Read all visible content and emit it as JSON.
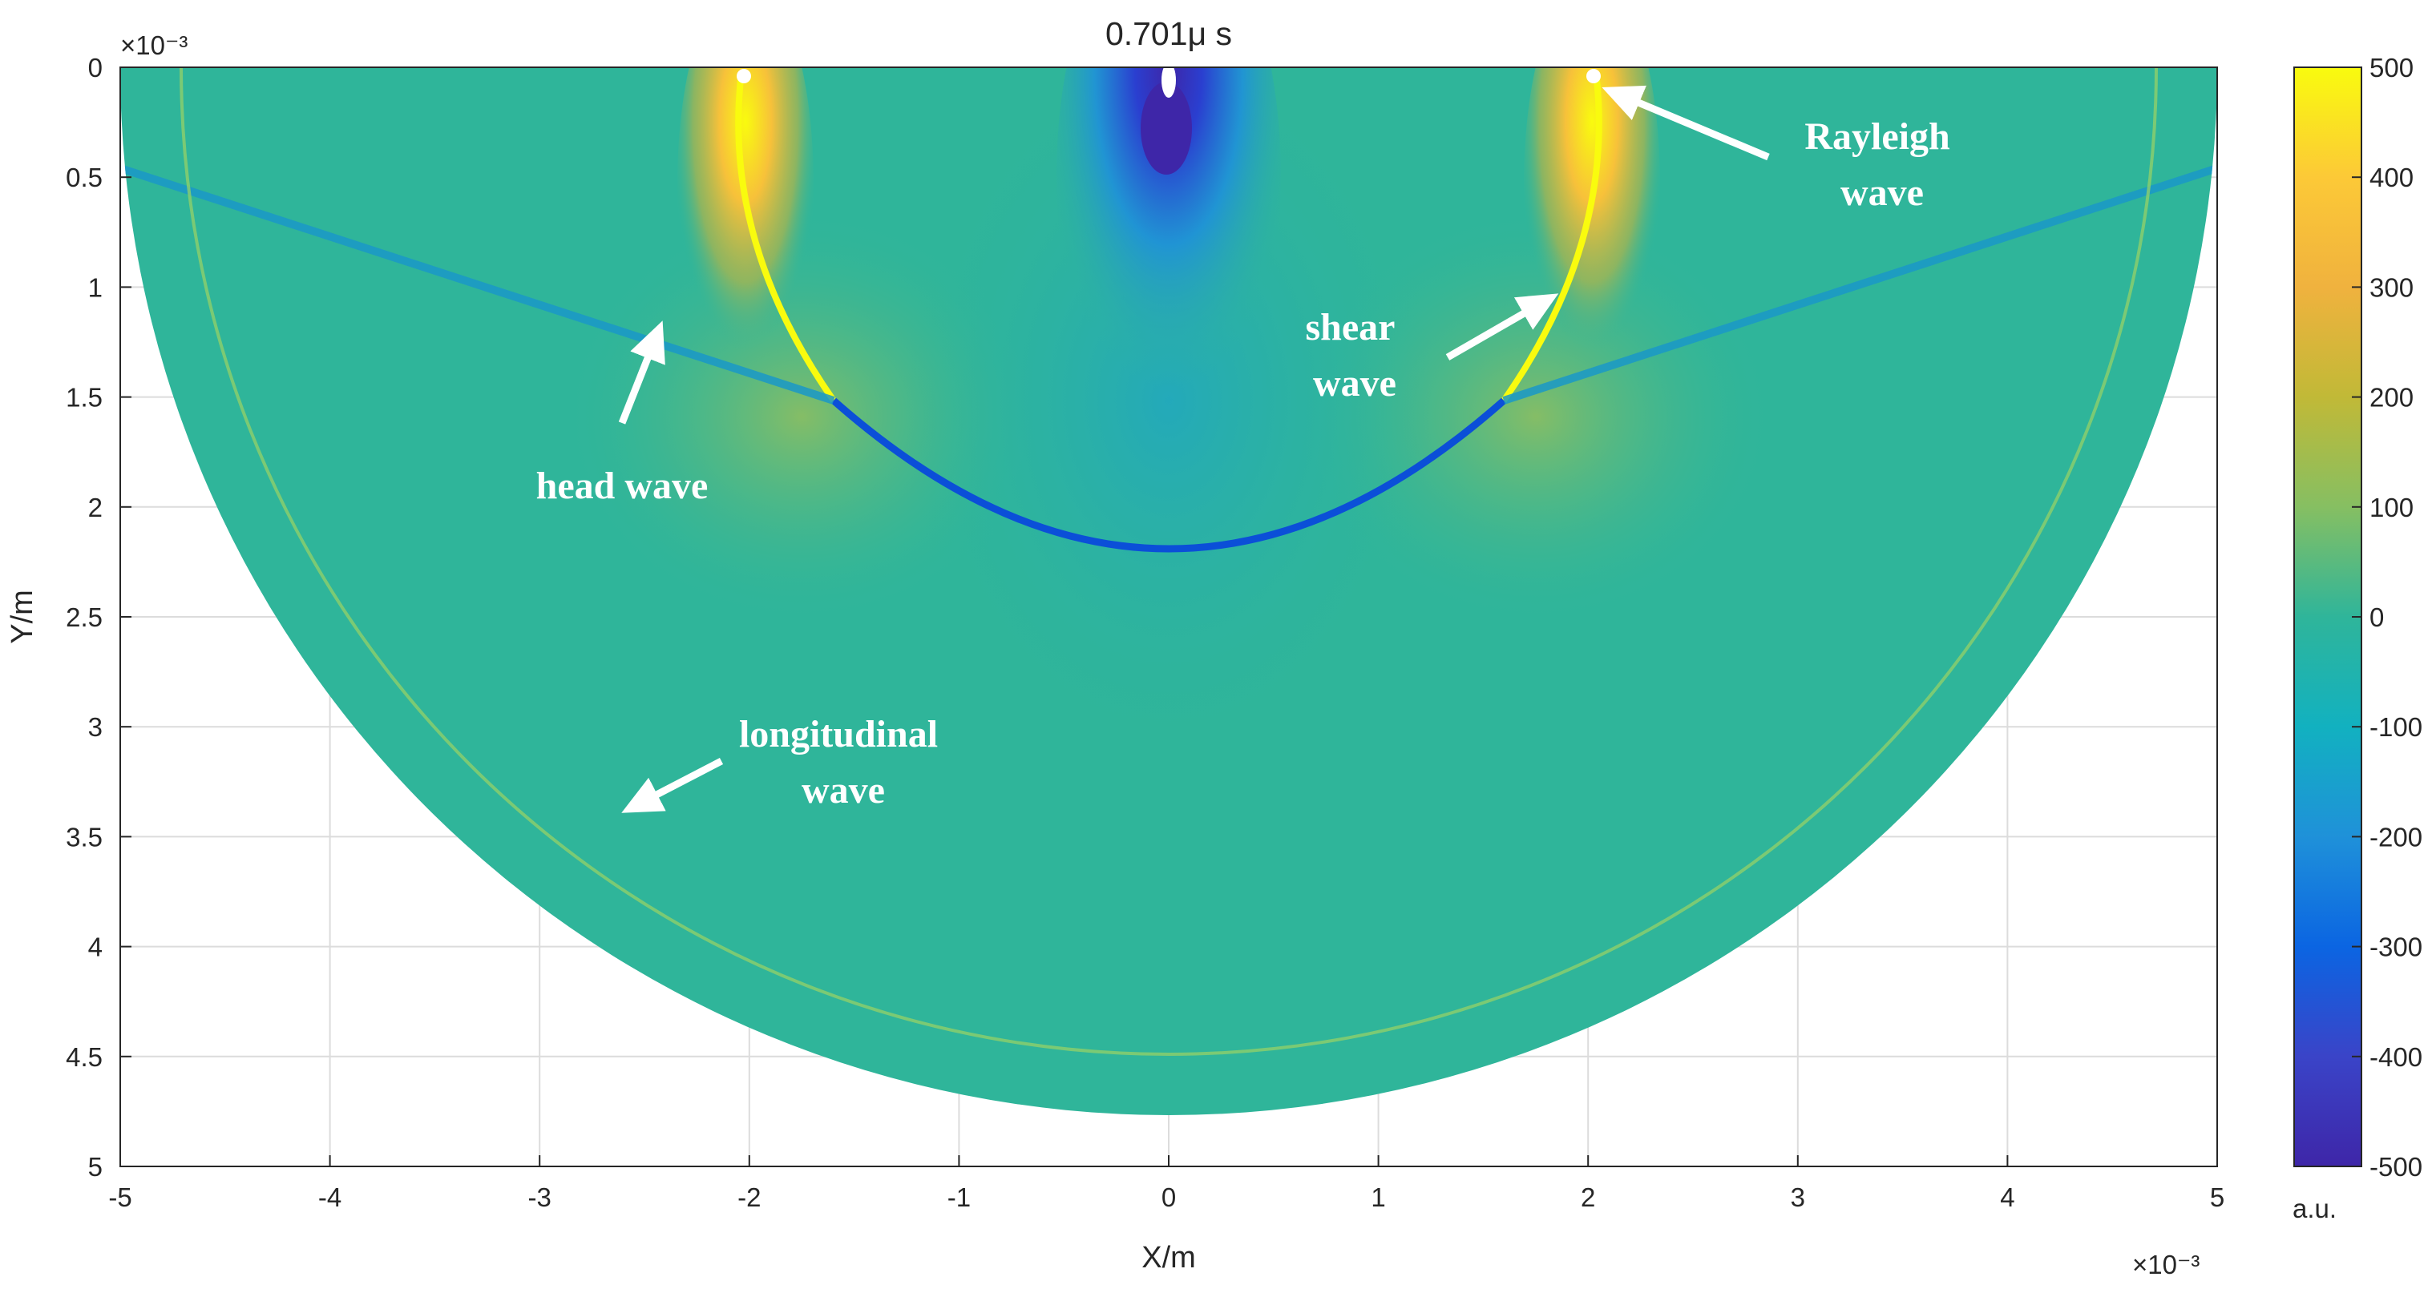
{
  "chart_data": {
    "type": "heatmap",
    "title": "0.701μ s",
    "xlabel": "X/m",
    "ylabel": "Y/m",
    "x_multiplier": "×10⁻³",
    "y_multiplier": "×10⁻³",
    "xlim": [
      -5,
      5
    ],
    "ylim": [
      0,
      5
    ],
    "y_reversed": true,
    "x_ticks": [
      "-5",
      "-4",
      "-3",
      "-2",
      "-1",
      "0",
      "1",
      "2",
      "3",
      "4",
      "5"
    ],
    "y_ticks": [
      "0",
      "0.5",
      "1",
      "1.5",
      "2",
      "2.5",
      "3",
      "3.5",
      "4",
      "4.5",
      "5"
    ],
    "grid": true,
    "colorbar": {
      "label": "a.u.",
      "range": [
        -500,
        500
      ],
      "ticks": [
        "500",
        "400",
        "300",
        "200",
        "100",
        "0",
        "-100",
        "-200",
        "-300",
        "-400",
        "-500"
      ],
      "colormap": "parula"
    },
    "domain_shape": "semicircle radius 5 centered at (0,0)",
    "annotations": [
      {
        "text": [
          "Rayleigh",
          "wave"
        ],
        "points_to": [
          2.1,
          0.12
        ]
      },
      {
        "text": [
          "shear",
          "wave"
        ],
        "points_to": [
          1.78,
          1.07
        ]
      },
      {
        "text": [
          "head wave"
        ],
        "points_to": [
          -2.42,
          1.2
        ]
      },
      {
        "text": [
          "longitudinal",
          "wave"
        ],
        "points_to": [
          -2.55,
          3.36
        ]
      }
    ],
    "wavefronts": {
      "rayleigh_x": [
        -2.0,
        2.0
      ],
      "shear_radius": 2.2,
      "longitudinal_radius": 4.5,
      "source": [
        0,
        0.3
      ]
    }
  },
  "colors": {
    "background_field": "#2fb59a",
    "positive_peak": "#f9fb0e",
    "negative_peak": "#3e26a8",
    "axis": "#262626",
    "grid": "#dcdcdc",
    "annotation": "#ffffff"
  }
}
